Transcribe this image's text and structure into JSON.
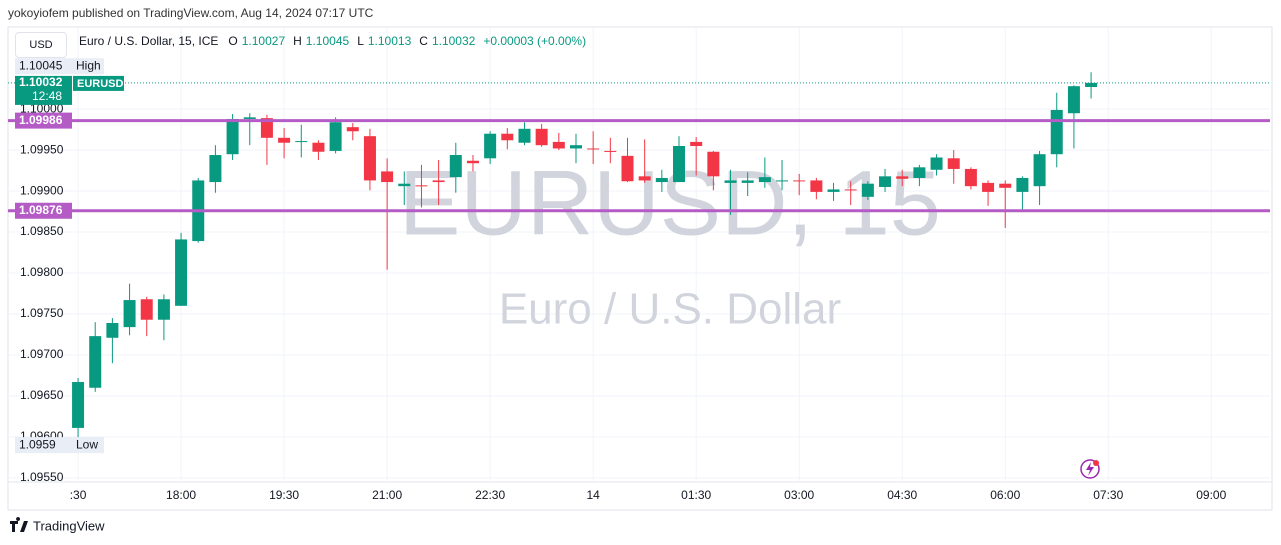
{
  "header": "yokoyiofem published on TradingView.com, Aug 14, 2024 07:17 UTC",
  "footer": "TradingView",
  "chart_data": {
    "type": "candlestick",
    "title": "Euro / U.S. Dollar, 15, ICE",
    "currency": "USD",
    "symbol": "EURUSD",
    "watermark_title": "EURUSD, 15",
    "watermark_subtitle": "Euro / U.S. Dollar",
    "ohlc_labels": [
      "O",
      "H",
      "L",
      "C"
    ],
    "change": "+0.00003 (+0.00%)",
    "countdown": "12:48",
    "high_label": "High",
    "low_label": "Low",
    "up_color": "#089981",
    "down_color": "#f23645",
    "levels": [
      1.09986,
      1.09876
    ],
    "level_color": "#b55bc6",
    "grid": true,
    "open": [
      1.09611,
      1.0966,
      1.09721,
      1.09734,
      1.09768,
      1.09743,
      1.0976,
      1.09839,
      1.09911,
      1.09945,
      1.09988,
      1.09989,
      1.09965,
      1.0996,
      1.09959,
      1.09949,
      1.09978,
      1.09967,
      1.09924,
      1.09906,
      1.09907,
      1.09913,
      1.09917,
      1.09937,
      1.0994,
      1.0997,
      1.09959,
      1.09976,
      1.0996,
      1.09952,
      1.09952,
      1.09949,
      1.09943,
      1.09918,
      1.09911,
      1.09911,
      1.0996,
      1.09948,
      1.0991,
      1.0991,
      1.09911,
      1.09912,
      1.09913,
      1.09913,
      1.09899,
      1.09902,
      1.09893,
      1.09905,
      1.09918,
      1.09916,
      1.09926,
      1.0994,
      1.09927,
      1.0991,
      1.09909,
      1.09899,
      1.09906,
      1.09945,
      1.09995,
      1.10027
    ],
    "high": [
      1.09672,
      1.0974,
      1.09745,
      1.09787,
      1.09771,
      1.09774,
      1.09849,
      1.09916,
      1.09956,
      1.09994,
      1.09995,
      1.09993,
      1.09977,
      1.09981,
      1.09962,
      1.0999,
      1.09983,
      1.09976,
      1.0994,
      1.09924,
      1.09932,
      1.09938,
      1.09959,
      1.09944,
      1.09973,
      1.09977,
      1.09984,
      1.09982,
      1.09971,
      1.0997,
      1.09973,
      1.09965,
      1.09965,
      1.09963,
      1.09926,
      1.09967,
      1.09966,
      1.09949,
      1.09926,
      1.09923,
      1.09941,
      1.09938,
      1.09921,
      1.09916,
      1.0991,
      1.09912,
      1.09912,
      1.09927,
      1.09926,
      1.09932,
      1.09945,
      1.0995,
      1.09929,
      1.09913,
      1.09913,
      1.09918,
      1.09949,
      1.1002,
      1.10029,
      1.10045
    ],
    "low": [
      1.0959,
      1.09655,
      1.0969,
      1.09724,
      1.09723,
      1.09718,
      1.0976,
      1.09837,
      1.09898,
      1.09938,
      1.09956,
      1.09932,
      1.0994,
      1.09941,
      1.09938,
      1.09946,
      1.09962,
      1.09901,
      1.09804,
      1.09883,
      1.0988,
      1.09883,
      1.09898,
      1.09924,
      1.09933,
      1.09951,
      1.09956,
      1.09954,
      1.0995,
      1.09934,
      1.09933,
      1.09934,
      1.09911,
      1.0991,
      1.09899,
      1.09911,
      1.09919,
      1.09901,
      1.09871,
      1.09894,
      1.09904,
      1.09901,
      1.09895,
      1.0989,
      1.09888,
      1.09883,
      1.09889,
      1.09899,
      1.09906,
      1.09906,
      1.09919,
      1.09909,
      1.09902,
      1.09882,
      1.09855,
      1.09877,
      1.09883,
      1.09929,
      1.09952,
      1.10013
    ],
    "close": [
      1.09667,
      1.09723,
      1.09739,
      1.09767,
      1.09743,
      1.09768,
      1.09841,
      1.09913,
      1.09944,
      1.09988,
      1.0999,
      1.09965,
      1.09959,
      1.09961,
      1.09948,
      1.09984,
      1.09973,
      1.09913,
      1.09911,
      1.09909,
      1.09906,
      1.09911,
      1.09944,
      1.09934,
      1.0997,
      1.09962,
      1.09976,
      1.09956,
      1.09952,
      1.09956,
      1.09951,
      1.09948,
      1.09912,
      1.09913,
      1.09916,
      1.09955,
      1.09955,
      1.09918,
      1.09913,
      1.09913,
      1.09917,
      1.09913,
      1.09912,
      1.09899,
      1.09902,
      1.09901,
      1.09909,
      1.09918,
      1.09915,
      1.09929,
      1.09941,
      1.09927,
      1.09906,
      1.09899,
      1.09904,
      1.09916,
      1.09945,
      1.09999,
      1.10028,
      1.10032
    ],
    "xlim": [
      -4.08,
      69.42
    ],
    "xticks": [
      {
        "value": 0,
        "label": ":30"
      },
      {
        "value": 6,
        "label": "18:00"
      },
      {
        "value": 12,
        "label": "19:30"
      },
      {
        "value": 18,
        "label": "21:00"
      },
      {
        "value": 24,
        "label": "22:30"
      },
      {
        "value": 30,
        "label": "14"
      },
      {
        "value": 36,
        "label": "01:30"
      },
      {
        "value": 42,
        "label": "03:00"
      },
      {
        "value": 48,
        "label": "04:30"
      },
      {
        "value": 54,
        "label": "06:00"
      },
      {
        "value": 60,
        "label": "07:30"
      },
      {
        "value": 66,
        "label": "09:00"
      }
    ],
    "ylim": [
      1.09545,
      1.10099
    ],
    "yticks": [
      {
        "value": 1.0955,
        "label": "1.09550"
      },
      {
        "value": 1.096,
        "label": "1.09600"
      },
      {
        "value": 1.0965,
        "label": "1.09650"
      },
      {
        "value": 1.097,
        "label": "1.09700"
      },
      {
        "value": 1.0975,
        "label": "1.09750"
      },
      {
        "value": 1.098,
        "label": "1.09800"
      },
      {
        "value": 1.0985,
        "label": "1.09850"
      },
      {
        "value": 1.099,
        "label": "1.09900"
      },
      {
        "value": 1.0995,
        "label": "1.09950"
      },
      {
        "value": 1.1,
        "label": "1.10000"
      }
    ]
  }
}
